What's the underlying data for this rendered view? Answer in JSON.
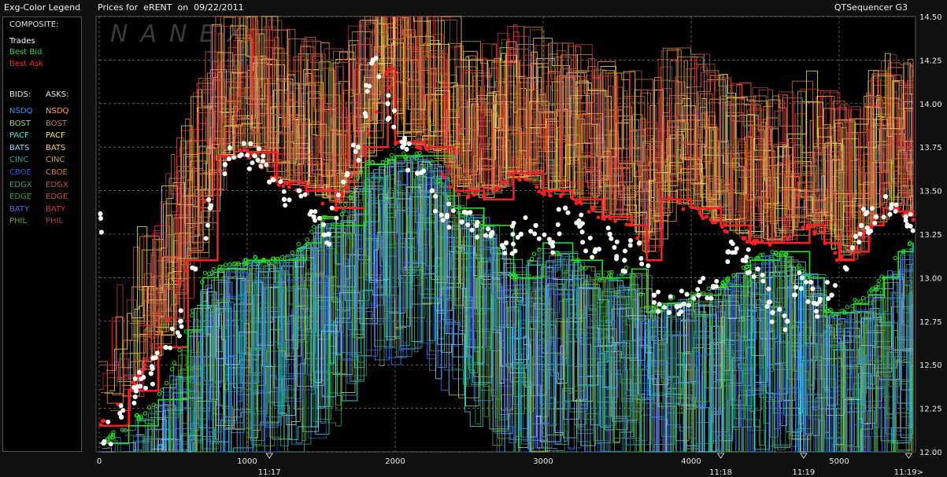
{
  "legend": {
    "title": "Exg-Color Legend",
    "composite_label": "COMPOSITE:",
    "composite": [
      {
        "label": "Trades",
        "color": "#ffffff"
      },
      {
        "label": "Best Bid",
        "color": "#22dd22"
      },
      {
        "label": "Best Ask",
        "color": "#ff2222"
      }
    ],
    "bids_header": "BIDS:",
    "asks_header": "ASKS:",
    "bids": [
      {
        "label": "NSDQ",
        "color": "#3a8cff"
      },
      {
        "label": "BOST",
        "color": "#a0d070"
      },
      {
        "label": "PACF",
        "color": "#40e0e0"
      },
      {
        "label": "BATS",
        "color": "#9ad0ff"
      },
      {
        "label": "CINC",
        "color": "#30a0a0"
      },
      {
        "label": "CBOE",
        "color": "#3060c0"
      },
      {
        "label": "EDGX",
        "color": "#40a070"
      },
      {
        "label": "EDGE",
        "color": "#3c9c3c"
      },
      {
        "label": "BATY",
        "color": "#5070e0"
      },
      {
        "label": "PHIL",
        "color": "#70a030"
      }
    ],
    "asks": [
      {
        "label": "NSDQ",
        "color": "#ff9a3c"
      },
      {
        "label": "BOST",
        "color": "#d07050"
      },
      {
        "label": "PACF",
        "color": "#f0f060"
      },
      {
        "label": "BATS",
        "color": "#ffd070"
      },
      {
        "label": "CINC",
        "color": "#c0a060"
      },
      {
        "label": "CBOE",
        "color": "#d08040"
      },
      {
        "label": "EDGX",
        "color": "#c05030"
      },
      {
        "label": "EDGE",
        "color": "#c05050"
      },
      {
        "label": "BATY",
        "color": "#e03030"
      },
      {
        "label": "PHIL",
        "color": "#b04040"
      }
    ]
  },
  "header": {
    "title": "Prices for  eRENT  on  09/22/2011",
    "brand": "QTSequencer G3",
    "watermark": "NANEX"
  },
  "chart_data": {
    "type": "line",
    "title": "Prices for  eRENT  on  09/22/2011",
    "xlim": [
      0,
      5500
    ],
    "ylim": [
      12.0,
      14.5
    ],
    "y_ticks": [
      "12.00",
      "12.25",
      "12.50",
      "12.75",
      "13.00",
      "13.25",
      "13.50",
      "13.75",
      "14.00",
      "14.25",
      "14.50"
    ],
    "x_ticks": [
      "0",
      "1000",
      "2000",
      "3000",
      "4000",
      "5000"
    ],
    "time_labels": [
      {
        "x": 1150,
        "label": "11:17"
      },
      {
        "x": 4200,
        "label": "11:18"
      },
      {
        "x": 4760,
        "label": "11:19"
      },
      {
        "x": 5470,
        "label": "11:19>"
      }
    ],
    "grid": true,
    "series": [
      {
        "name": "Best Ask",
        "color": "#ff2222",
        "x": [
          0,
          200,
          400,
          600,
          800,
          1000,
          1200,
          1400,
          1600,
          1800,
          1950,
          2000,
          2200,
          2400,
          2600,
          2800,
          3000,
          3200,
          3400,
          3600,
          3700,
          3800,
          4000,
          4200,
          4400,
          4600,
          4800,
          4900,
          5000,
          5100,
          5200,
          5300,
          5400,
          5500
        ],
        "y": [
          12.15,
          12.35,
          12.6,
          13.1,
          13.7,
          13.72,
          13.55,
          13.5,
          13.4,
          13.75,
          14.2,
          13.78,
          13.75,
          13.5,
          13.45,
          13.6,
          13.5,
          13.45,
          13.35,
          13.3,
          13.1,
          13.45,
          13.4,
          13.3,
          13.2,
          13.2,
          13.3,
          13.2,
          13.1,
          13.15,
          13.3,
          13.4,
          13.38,
          13.35
        ]
      },
      {
        "name": "Best Bid",
        "color": "#22dd22",
        "x": [
          0,
          200,
          400,
          600,
          700,
          800,
          1000,
          1200,
          1400,
          1500,
          1600,
          1800,
          1950,
          2000,
          2200,
          2400,
          2600,
          2800,
          3000,
          3200,
          3400,
          3600,
          3700,
          3800,
          4000,
          4200,
          4400,
          4600,
          4800,
          4900,
          5000,
          5100,
          5200,
          5300,
          5400,
          5500
        ],
        "y": [
          12.05,
          12.15,
          12.3,
          12.7,
          13.0,
          13.05,
          13.1,
          13.1,
          13.2,
          13.35,
          13.3,
          13.65,
          13.68,
          13.7,
          13.7,
          13.4,
          13.3,
          13.0,
          13.2,
          13.1,
          13.0,
          13.05,
          12.8,
          12.85,
          12.9,
          12.95,
          13.1,
          13.15,
          13.0,
          12.8,
          12.8,
          12.85,
          12.9,
          13.0,
          13.15,
          13.2
        ]
      },
      {
        "name": "Trades",
        "color": "#ffffff",
        "x": [
          30,
          150,
          250,
          350,
          450,
          550,
          650,
          750,
          850,
          950,
          1050,
          1150,
          1250,
          1350,
          1450,
          1550,
          1650,
          1750,
          1850,
          1950,
          2050,
          2150,
          2250,
          2350,
          2450,
          2550,
          2650,
          2750,
          2850,
          2950,
          3050,
          3150,
          3250,
          3350,
          3450,
          3550,
          3650,
          3750,
          3850,
          3950,
          4050,
          4150,
          4250,
          4350,
          4450,
          4550,
          4650,
          4750,
          4850,
          4950,
          5050,
          5150,
          5250,
          5350,
          5450
        ],
        "y": [
          12.05,
          12.2,
          12.35,
          12.45,
          12.6,
          12.75,
          13.05,
          13.4,
          13.65,
          13.7,
          13.7,
          13.55,
          13.45,
          13.5,
          13.35,
          13.25,
          13.55,
          13.75,
          14.25,
          14.0,
          13.75,
          13.6,
          13.5,
          13.35,
          13.32,
          13.3,
          13.25,
          13.2,
          13.25,
          13.3,
          13.2,
          13.4,
          13.3,
          13.15,
          13.25,
          13.1,
          13.2,
          12.9,
          12.8,
          12.85,
          12.9,
          12.95,
          13.15,
          13.1,
          13.05,
          12.8,
          12.75,
          13.0,
          12.85,
          12.9,
          13.05,
          13.3,
          13.35,
          13.4,
          13.35
        ]
      }
    ]
  }
}
